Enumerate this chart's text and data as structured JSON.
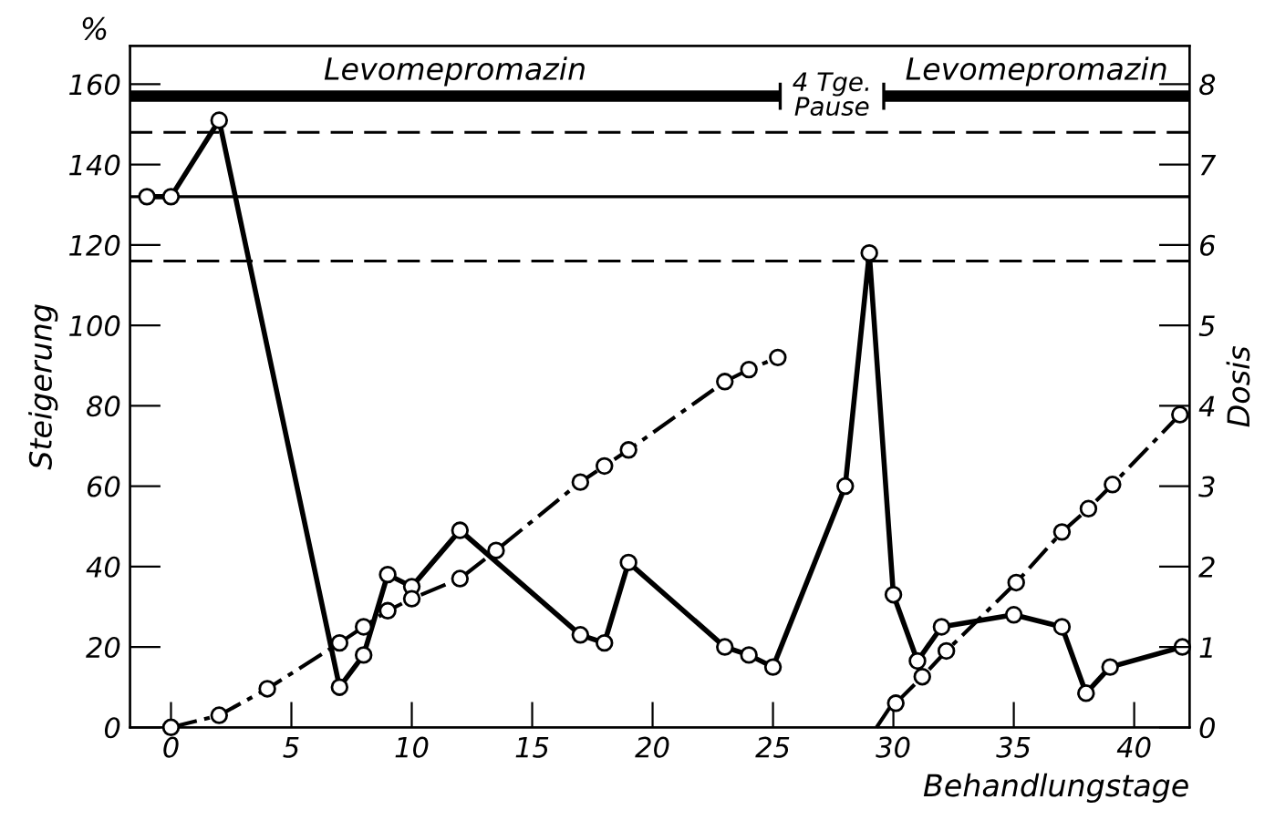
{
  "chart_data": {
    "type": "line",
    "xlabel": "Behandlungstage",
    "ylabel": "Steigerung",
    "y2label": "Dosis",
    "annotations": [
      "%",
      "4 Tge.\nPause"
    ],
    "xlim": [
      -1.7,
      42.3
    ],
    "xticks": [
      0,
      5,
      10,
      15,
      20,
      25,
      30,
      35,
      40
    ],
    "ylim": [
      0,
      169.5
    ],
    "yticks": [
      0,
      20,
      40,
      60,
      80,
      100,
      120,
      140,
      160
    ],
    "y2lim": [
      0,
      8.475
    ],
    "y2ticks": [
      0,
      1,
      2,
      3,
      4,
      5,
      6,
      7,
      8
    ],
    "grid": false,
    "marker": "circle",
    "series": [
      {
        "color": "#000000",
        "line_style": "solid",
        "x": [
          -1,
          0,
          2,
          7,
          8,
          9,
          10,
          12,
          17,
          18,
          19,
          23,
          24,
          25,
          28,
          29,
          30,
          31,
          32,
          35,
          37,
          38,
          39,
          42
        ],
        "values": [
          132,
          132,
          151,
          10,
          18,
          38,
          35,
          49,
          23,
          21,
          41,
          20,
          18,
          15,
          60,
          118,
          33,
          16.5,
          25,
          28,
          25,
          8.5,
          15,
          20
        ]
      },
      {
        "color": "#000000",
        "line_style": "dashdot",
        "axis": "y2",
        "x": [
          0,
          2,
          4,
          7,
          8,
          9,
          10,
          12,
          13.5,
          17,
          18,
          19,
          23,
          24,
          25.2
        ],
        "values": [
          0,
          0.15,
          0.48,
          1.05,
          1.25,
          1.45,
          1.6,
          1.85,
          2.2,
          3.05,
          3.25,
          3.45,
          4.3,
          4.45,
          4.6
        ]
      },
      {
        "color": "#000000",
        "line_style": "dashdot",
        "axis": "y2",
        "marker": "none",
        "x": [
          29.3,
          29.88
        ],
        "values": [
          0,
          0.26
        ]
      },
      {
        "color": "#000000",
        "line_style": "dashdot",
        "axis": "y2",
        "x": [
          30.1,
          31.2,
          32.2,
          35.1,
          37,
          38.1,
          39.1,
          41.9
        ],
        "values": [
          0.3,
          0.63,
          0.95,
          1.8,
          2.43,
          2.72,
          3.02,
          3.89
        ]
      },
      {
        "name": "Levomepromazin",
        "color": "#000000",
        "line_style": "solid",
        "marker": "none",
        "x": [
          -1.7,
          25.3
        ],
        "values": [
          157,
          157
        ]
      },
      {
        "name": "Levomepromazin",
        "color": "#000000",
        "line_style": "solid",
        "marker": "none",
        "x": [
          29.6,
          42.3
        ],
        "values": [
          157,
          157
        ]
      }
    ],
    "ref_lines": [
      {
        "axis": "y",
        "value": 148,
        "line_style": "dashed",
        "color": "#000000"
      },
      {
        "axis": "y",
        "value": 132,
        "line_style": "solid",
        "color": "#000000"
      },
      {
        "axis": "y",
        "value": 116,
        "line_style": "dashed",
        "color": "#000000"
      }
    ]
  }
}
